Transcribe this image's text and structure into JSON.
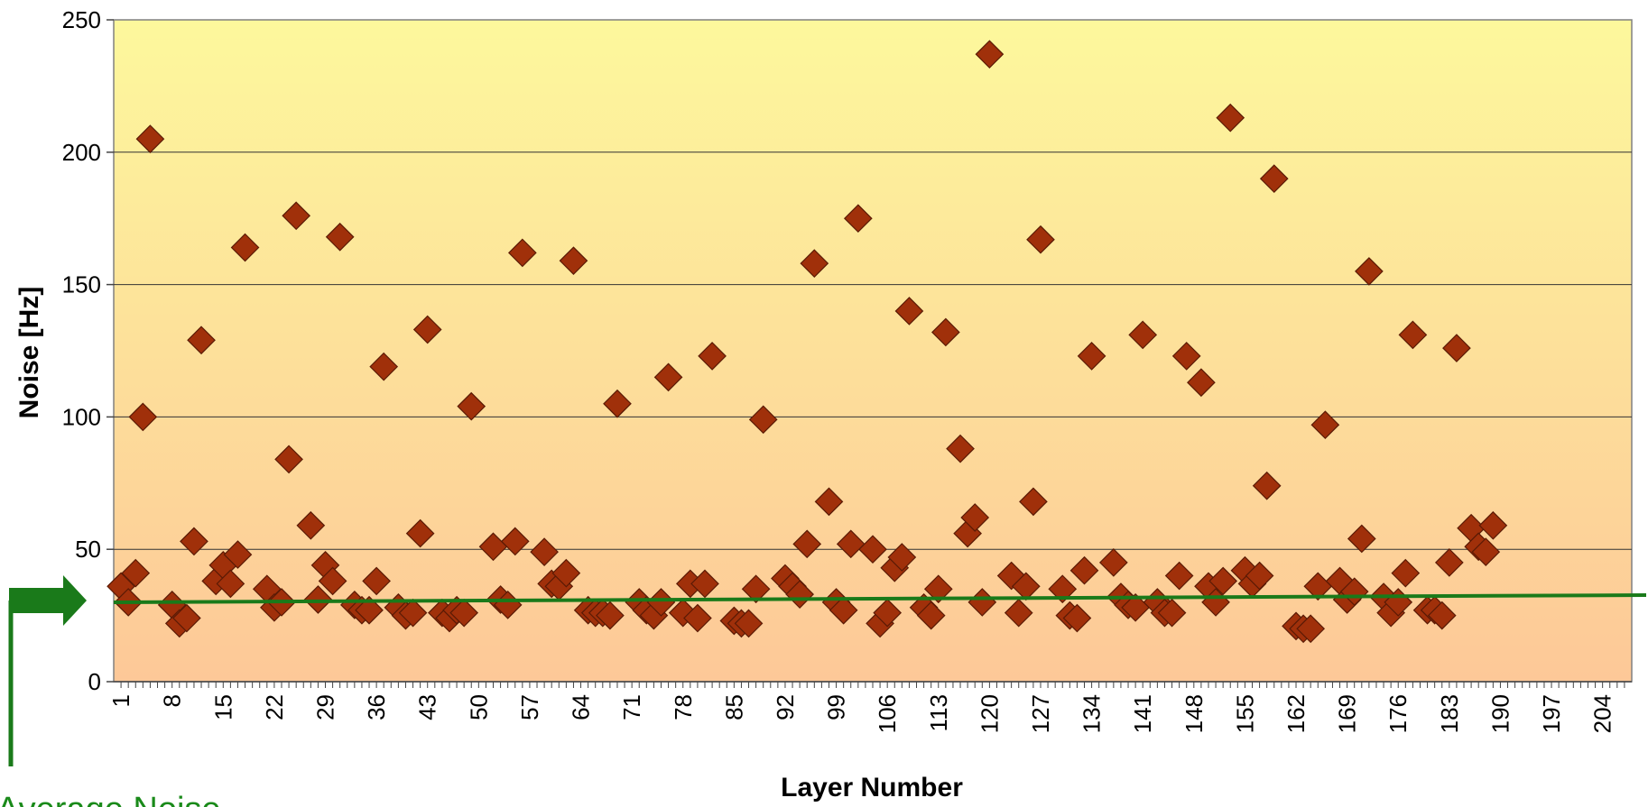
{
  "chart_data": {
    "type": "scatter",
    "title": "",
    "xlabel": "Layer Number",
    "ylabel": "Noise [Hz]",
    "ylim": [
      0,
      250
    ],
    "xlim": [
      1,
      207
    ],
    "yticks": [
      0,
      50,
      100,
      150,
      200,
      250
    ],
    "xticks": [
      1,
      8,
      15,
      22,
      29,
      36,
      43,
      50,
      57,
      64,
      71,
      78,
      85,
      92,
      99,
      106,
      113,
      120,
      127,
      134,
      141,
      148,
      155,
      162,
      169,
      176,
      183,
      190,
      197,
      204
    ],
    "grid": "horizontal",
    "marker": "diamond",
    "marker_color": "#a0300a",
    "background_gradient": [
      "#fdf89c",
      "#fdc898"
    ],
    "average_line": {
      "value": 31,
      "color": "#1a7a1a"
    },
    "annotation_text": "Average Noise",
    "series": [
      {
        "values": [
          [
            1,
            36
          ],
          [
            2,
            30
          ],
          [
            3,
            41
          ],
          [
            4,
            100
          ],
          [
            5,
            205
          ],
          [
            8,
            29
          ],
          [
            9,
            22
          ],
          [
            10,
            24
          ],
          [
            11,
            53
          ],
          [
            12,
            129
          ],
          [
            14,
            38
          ],
          [
            15,
            44
          ],
          [
            16,
            37
          ],
          [
            17,
            48
          ],
          [
            18,
            164
          ],
          [
            21,
            35
          ],
          [
            22,
            28
          ],
          [
            23,
            30
          ],
          [
            24,
            84
          ],
          [
            25,
            176
          ],
          [
            27,
            59
          ],
          [
            28,
            31
          ],
          [
            29,
            44
          ],
          [
            30,
            38
          ],
          [
            31,
            168
          ],
          [
            33,
            29
          ],
          [
            34,
            27
          ],
          [
            35,
            27
          ],
          [
            36,
            38
          ],
          [
            37,
            119
          ],
          [
            39,
            28
          ],
          [
            40,
            25
          ],
          [
            41,
            26
          ],
          [
            42,
            56
          ],
          [
            43,
            133
          ],
          [
            45,
            26
          ],
          [
            46,
            24
          ],
          [
            47,
            27
          ],
          [
            48,
            26
          ],
          [
            49,
            104
          ],
          [
            52,
            51
          ],
          [
            53,
            31
          ],
          [
            54,
            29
          ],
          [
            55,
            53
          ],
          [
            56,
            162
          ],
          [
            59,
            49
          ],
          [
            60,
            37
          ],
          [
            61,
            36
          ],
          [
            62,
            41
          ],
          [
            63,
            159
          ],
          [
            65,
            27
          ],
          [
            66,
            26
          ],
          [
            67,
            26
          ],
          [
            68,
            25
          ],
          [
            69,
            105
          ],
          [
            72,
            30
          ],
          [
            73,
            27
          ],
          [
            74,
            25
          ],
          [
            75,
            30
          ],
          [
            76,
            115
          ],
          [
            78,
            26
          ],
          [
            79,
            37
          ],
          [
            80,
            24
          ],
          [
            81,
            37
          ],
          [
            82,
            123
          ],
          [
            85,
            23
          ],
          [
            86,
            22
          ],
          [
            87,
            22
          ],
          [
            88,
            35
          ],
          [
            89,
            99
          ],
          [
            92,
            39
          ],
          [
            93,
            36
          ],
          [
            94,
            33
          ],
          [
            95,
            52
          ],
          [
            96,
            158
          ],
          [
            98,
            68
          ],
          [
            99,
            30
          ],
          [
            100,
            27
          ],
          [
            101,
            52
          ],
          [
            102,
            175
          ],
          [
            104,
            50
          ],
          [
            105,
            22
          ],
          [
            106,
            26
          ],
          [
            107,
            43
          ],
          [
            108,
            47
          ],
          [
            109,
            140
          ],
          [
            111,
            28
          ],
          [
            112,
            25
          ],
          [
            113,
            35
          ],
          [
            114,
            132
          ],
          [
            116,
            88
          ],
          [
            117,
            56
          ],
          [
            118,
            62
          ],
          [
            119,
            30
          ],
          [
            120,
            237
          ],
          [
            123,
            40
          ],
          [
            124,
            26
          ],
          [
            125,
            36
          ],
          [
            126,
            68
          ],
          [
            127,
            167
          ],
          [
            130,
            35
          ],
          [
            131,
            25
          ],
          [
            132,
            24
          ],
          [
            133,
            42
          ],
          [
            134,
            123
          ],
          [
            137,
            45
          ],
          [
            138,
            32
          ],
          [
            139,
            29
          ],
          [
            140,
            28
          ],
          [
            141,
            131
          ],
          [
            143,
            30
          ],
          [
            144,
            26
          ],
          [
            145,
            26
          ],
          [
            146,
            40
          ],
          [
            147,
            123
          ],
          [
            149,
            113
          ],
          [
            150,
            36
          ],
          [
            151,
            30
          ],
          [
            152,
            38
          ],
          [
            153,
            213
          ],
          [
            155,
            42
          ],
          [
            156,
            37
          ],
          [
            157,
            40
          ],
          [
            158,
            74
          ],
          [
            159,
            190
          ],
          [
            162,
            21
          ],
          [
            163,
            20
          ],
          [
            164,
            20
          ],
          [
            165,
            36
          ],
          [
            166,
            97
          ],
          [
            168,
            38
          ],
          [
            169,
            31
          ],
          [
            170,
            34
          ],
          [
            171,
            54
          ],
          [
            172,
            155
          ],
          [
            174,
            32
          ],
          [
            175,
            26
          ],
          [
            176,
            30
          ],
          [
            177,
            41
          ],
          [
            178,
            131
          ],
          [
            180,
            27
          ],
          [
            181,
            27
          ],
          [
            182,
            25
          ],
          [
            183,
            45
          ],
          [
            184,
            126
          ],
          [
            186,
            58
          ],
          [
            187,
            51
          ],
          [
            188,
            49
          ],
          [
            189,
            59
          ]
        ]
      }
    ]
  }
}
